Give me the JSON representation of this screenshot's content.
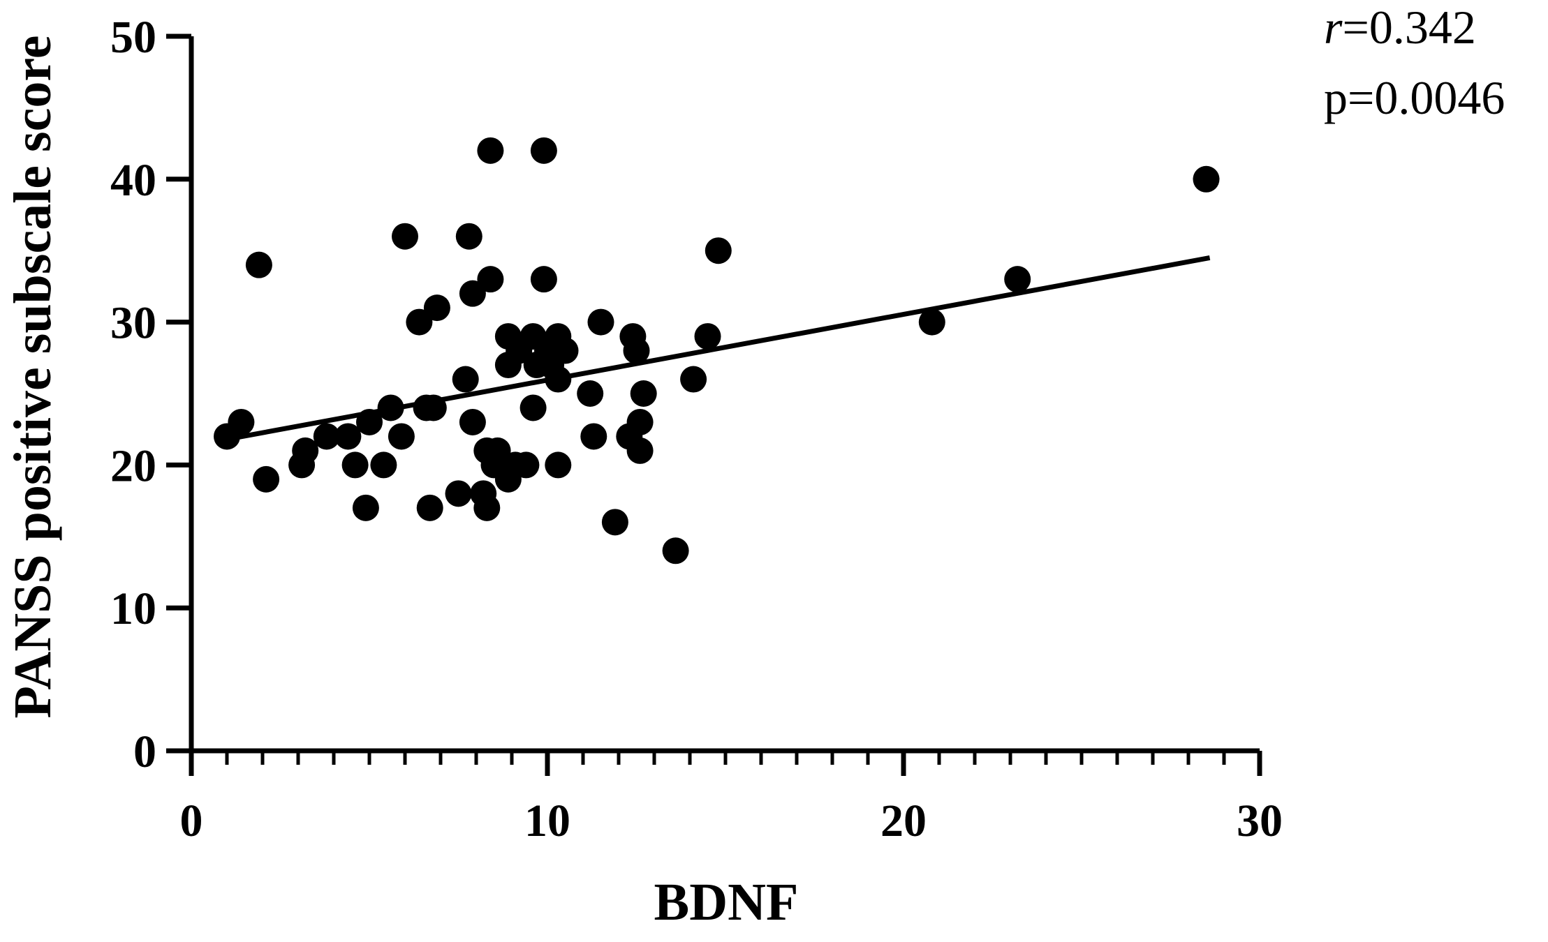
{
  "chart_data": {
    "type": "scatter",
    "xlabel": "BDNF",
    "ylabel": "PANSS positive subscale score",
    "xlim": [
      0,
      30
    ],
    "ylim": [
      0,
      50
    ],
    "x_ticks": [
      "0",
      "10",
      "20",
      "30"
    ],
    "y_ticks": [
      "0",
      "10",
      "20",
      "30",
      "40",
      "50"
    ],
    "x_minor_step": 1,
    "grid": false,
    "marker_color": "#000000",
    "annotation": {
      "r_symbol": "r",
      "r_value": "=0.342",
      "p_text": "p=0.0046"
    },
    "regression_line": {
      "x": [
        1.0,
        28.6
      ],
      "y": [
        21.8,
        34.5
      ]
    },
    "points": [
      {
        "x": 1.0,
        "y": 22
      },
      {
        "x": 1.4,
        "y": 23
      },
      {
        "x": 1.9,
        "y": 34
      },
      {
        "x": 2.1,
        "y": 19
      },
      {
        "x": 3.1,
        "y": 20
      },
      {
        "x": 3.2,
        "y": 21
      },
      {
        "x": 3.8,
        "y": 22
      },
      {
        "x": 4.4,
        "y": 22
      },
      {
        "x": 4.6,
        "y": 20
      },
      {
        "x": 4.9,
        "y": 17
      },
      {
        "x": 5.0,
        "y": 23
      },
      {
        "x": 5.4,
        "y": 20
      },
      {
        "x": 5.6,
        "y": 24
      },
      {
        "x": 5.9,
        "y": 22
      },
      {
        "x": 6.0,
        "y": 36
      },
      {
        "x": 6.4,
        "y": 30
      },
      {
        "x": 6.6,
        "y": 24
      },
      {
        "x": 6.8,
        "y": 24
      },
      {
        "x": 6.7,
        "y": 17
      },
      {
        "x": 6.9,
        "y": 31
      },
      {
        "x": 7.5,
        "y": 18
      },
      {
        "x": 7.7,
        "y": 26
      },
      {
        "x": 7.8,
        "y": 36
      },
      {
        "x": 7.9,
        "y": 32
      },
      {
        "x": 7.9,
        "y": 23
      },
      {
        "x": 8.2,
        "y": 18
      },
      {
        "x": 8.3,
        "y": 17
      },
      {
        "x": 8.3,
        "y": 21
      },
      {
        "x": 8.4,
        "y": 42
      },
      {
        "x": 8.4,
        "y": 33
      },
      {
        "x": 8.5,
        "y": 20
      },
      {
        "x": 8.6,
        "y": 21
      },
      {
        "x": 8.9,
        "y": 29
      },
      {
        "x": 8.9,
        "y": 27
      },
      {
        "x": 8.9,
        "y": 19
      },
      {
        "x": 9.1,
        "y": 20
      },
      {
        "x": 9.2,
        "y": 28
      },
      {
        "x": 9.4,
        "y": 20
      },
      {
        "x": 9.6,
        "y": 29
      },
      {
        "x": 9.6,
        "y": 24
      },
      {
        "x": 9.7,
        "y": 27
      },
      {
        "x": 9.9,
        "y": 42
      },
      {
        "x": 9.9,
        "y": 33
      },
      {
        "x": 10.0,
        "y": 28
      },
      {
        "x": 10.1,
        "y": 27
      },
      {
        "x": 10.3,
        "y": 29
      },
      {
        "x": 10.3,
        "y": 26
      },
      {
        "x": 10.3,
        "y": 20
      },
      {
        "x": 10.5,
        "y": 28
      },
      {
        "x": 11.2,
        "y": 25
      },
      {
        "x": 11.3,
        "y": 22
      },
      {
        "x": 11.5,
        "y": 30
      },
      {
        "x": 11.9,
        "y": 16
      },
      {
        "x": 12.3,
        "y": 22
      },
      {
        "x": 12.4,
        "y": 29
      },
      {
        "x": 12.5,
        "y": 28
      },
      {
        "x": 12.6,
        "y": 23
      },
      {
        "x": 12.6,
        "y": 21
      },
      {
        "x": 12.7,
        "y": 25
      },
      {
        "x": 13.6,
        "y": 14
      },
      {
        "x": 14.1,
        "y": 26
      },
      {
        "x": 14.5,
        "y": 29
      },
      {
        "x": 14.8,
        "y": 35
      },
      {
        "x": 20.8,
        "y": 30
      },
      {
        "x": 23.2,
        "y": 33
      },
      {
        "x": 28.5,
        "y": 40
      }
    ]
  }
}
